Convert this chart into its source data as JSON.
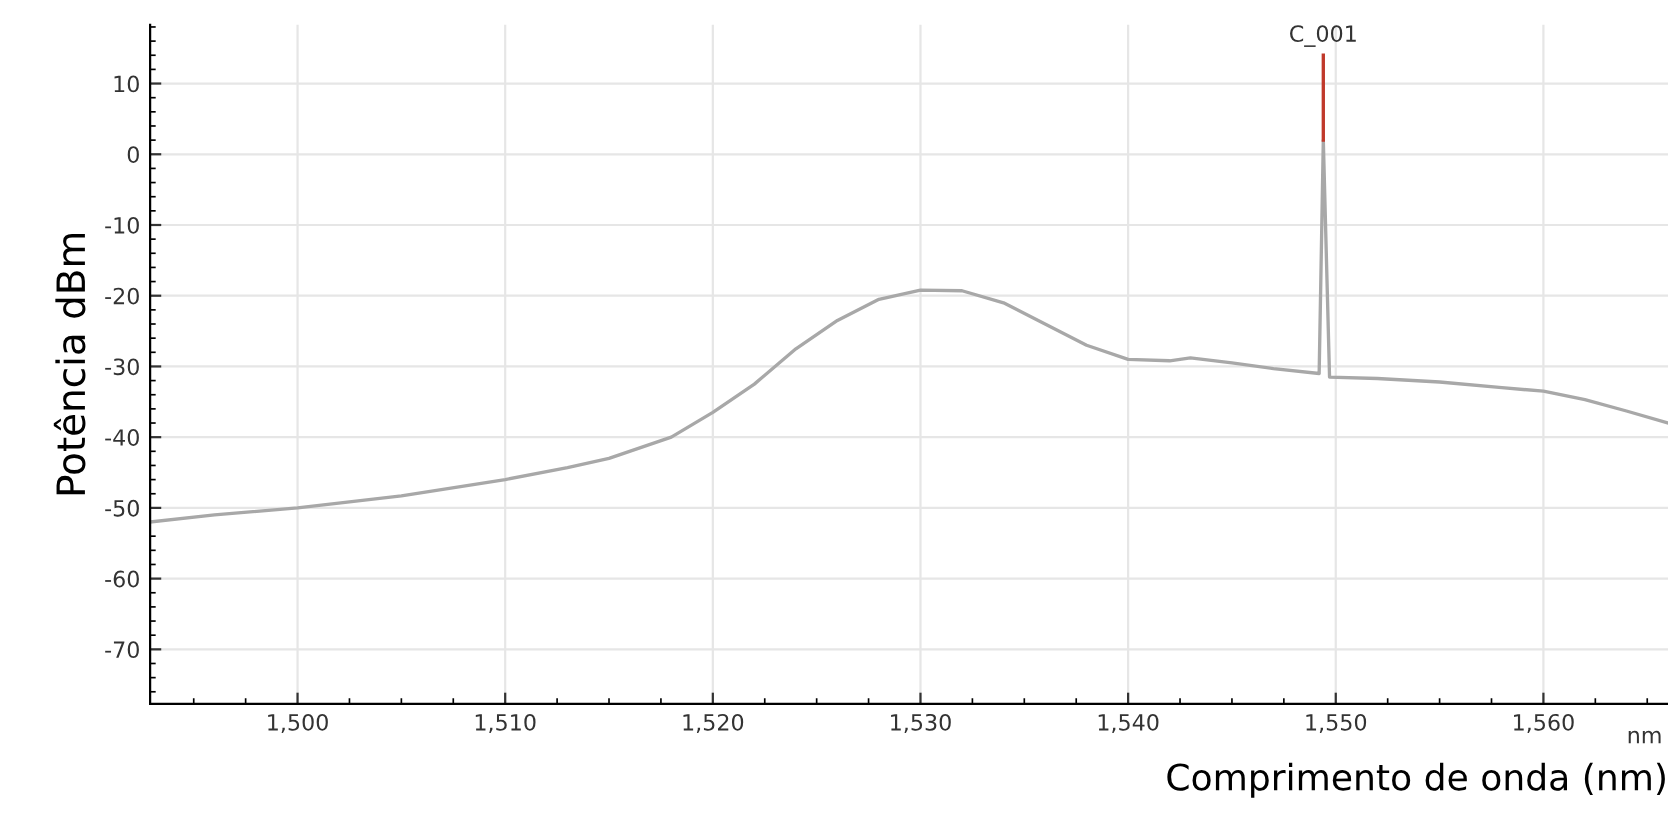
{
  "chart_data": {
    "type": "line",
    "xlabel": "Comprimento de onda (nm)",
    "ylabel": "Potência dBm",
    "xlim": [
      1492.9,
      1566
    ],
    "ylim": [
      -77.7,
      18.3
    ],
    "xticks": [
      {
        "value": 1500,
        "label": "1,500"
      },
      {
        "value": 1510,
        "label": "1,510"
      },
      {
        "value": 1520,
        "label": "1,520"
      },
      {
        "value": 1530,
        "label": "1,530"
      },
      {
        "value": 1540,
        "label": "1,540"
      },
      {
        "value": 1550,
        "label": "1,550"
      },
      {
        "value": 1560,
        "label": "1,560"
      }
    ],
    "yticks": [
      -70,
      -60,
      -50,
      -40,
      -30,
      -20,
      -10,
      0,
      10
    ],
    "grid": true,
    "legend": false,
    "marker": "none",
    "line_style": "solid",
    "series": [
      {
        "color": "#a8a8a8",
        "x": [
          1492.9,
          1496,
          1500,
          1505,
          1510,
          1513,
          1515,
          1518,
          1520,
          1522,
          1524,
          1526,
          1528,
          1530,
          1532,
          1534,
          1536,
          1538,
          1540,
          1542,
          1543,
          1545,
          1547,
          1549.2,
          1549.4,
          1549.7,
          1552,
          1555,
          1558,
          1560,
          1562,
          1564,
          1566
        ],
        "values": [
          -52,
          -51,
          -50,
          -48.3,
          -46,
          -44.3,
          -43,
          -40,
          -36.5,
          -32.5,
          -27.5,
          -23.5,
          -20.5,
          -19.2,
          -19.3,
          -21,
          -24,
          -27,
          -29,
          -29.2,
          -28.8,
          -29.5,
          -30.3,
          -31,
          2,
          -31.5,
          -31.7,
          -32.2,
          -33,
          -33.5,
          -34.7,
          -36.3,
          -38
        ]
      },
      {
        "color": "#c0392b",
        "x": [
          1549.4,
          1549.4
        ],
        "values": [
          2,
          14
        ]
      }
    ],
    "annotations": [
      {
        "text": "C_001",
        "x": 1549.4,
        "y": 14
      },
      "nm"
    ]
  }
}
